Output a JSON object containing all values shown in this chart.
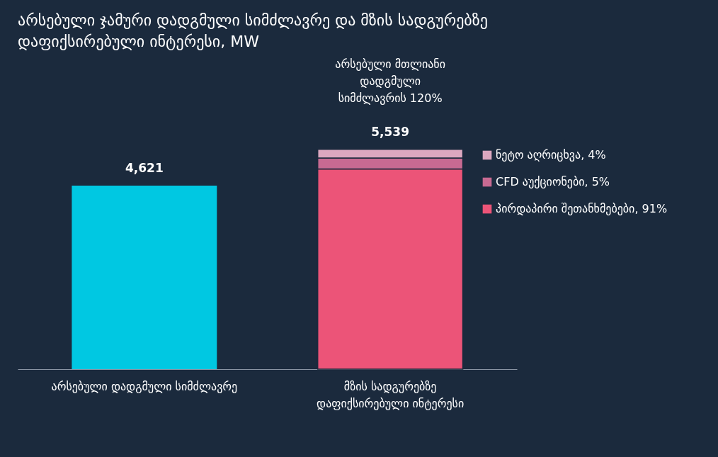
{
  "chart_data": {
    "type": "bar",
    "title": "არსებული ჯამური დადგმული სიმძლავრე და მზის სადგურებზე დაფიქსირებული ინტერესი, MW",
    "categories": [
      "არსებული დადგმული სიმძლავრე",
      "მზის სადგურებზე დაფიქსირებული ინტერესი"
    ],
    "stacked": true,
    "series": [
      {
        "color": "#00c8e2",
        "values": [
          4621,
          null
        ],
        "value_labels": [
          "4,621",
          null
        ]
      },
      {
        "name": "პირდაპირი შეთანხმებები, 91%",
        "color": "#ec5478",
        "values": [
          null,
          5040
        ]
      },
      {
        "name": "CFD აუქციონები, 5%",
        "color": "#c86a92",
        "values": [
          null,
          277
        ]
      },
      {
        "name": "ნეტო აღრიცხვა, 4%",
        "color": "#dca8c0",
        "values": [
          null,
          222
        ]
      }
    ],
    "totals": [
      null,
      "5,539"
    ],
    "annotations": [
      "არსებული მთლიანი დადგმული სიმძლავრის 120%"
    ],
    "legend": "right",
    "grid": false
  }
}
